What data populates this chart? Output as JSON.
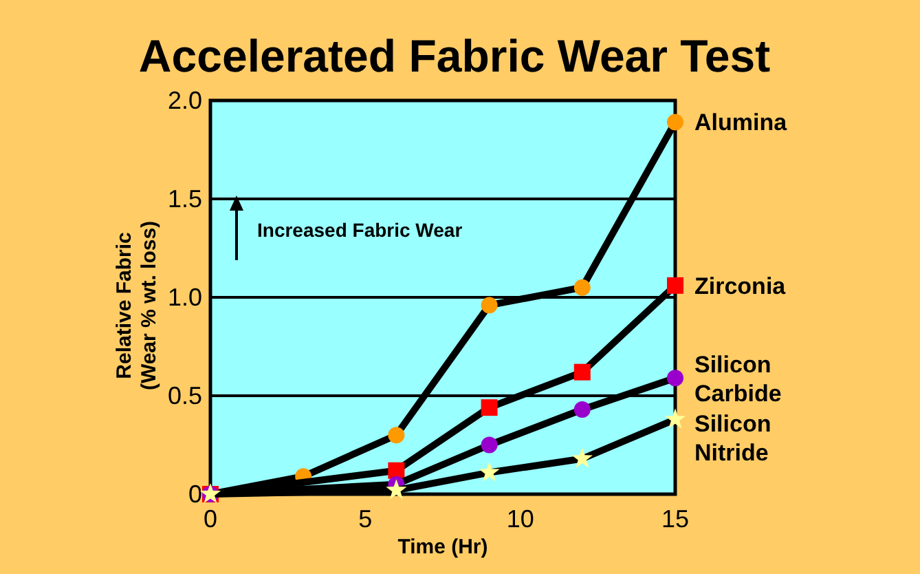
{
  "chart_data": {
    "type": "line",
    "title": "Accelerated Fabric Wear Test",
    "xlabel": "Time (Hr)",
    "ylabel": "Relative Fabric\n(Wear % wt. loss)",
    "x": [
      0,
      3,
      6,
      9,
      12,
      15
    ],
    "series": [
      {
        "name": "Alumina",
        "color": "#ff9900",
        "marker": "circle",
        "values": [
          0,
          0.09,
          0.3,
          0.96,
          1.05,
          1.89
        ]
      },
      {
        "name": "Zirconia",
        "color": "#ff0000",
        "marker": "square",
        "x": [
          0,
          6,
          9,
          12,
          15
        ],
        "values": [
          0,
          0.12,
          0.44,
          0.62,
          1.06
        ]
      },
      {
        "name": "Silicon\nCarbide",
        "color": "#9900cc",
        "marker": "circle",
        "x": [
          0,
          6,
          9,
          12,
          15
        ],
        "values": [
          0,
          0.05,
          0.25,
          0.43,
          0.59
        ]
      },
      {
        "name": "Silicon\nNitride",
        "color": "#ffff99",
        "marker": "star",
        "x": [
          0,
          6,
          9,
          12,
          15
        ],
        "values": [
          0,
          0.02,
          0.11,
          0.18,
          0.38
        ]
      }
    ],
    "xlim": [
      0,
      15
    ],
    "xticks": [
      0,
      5,
      10,
      15
    ],
    "ylim": [
      0,
      2
    ],
    "yticks": [
      0,
      0.5,
      {
        "value": 1,
        "label": "1.0"
      },
      1.5,
      {
        "value": 2,
        "label": "2.0"
      }
    ],
    "grid": "y",
    "annotations": [
      "Increased Fabric Wear"
    ]
  }
}
